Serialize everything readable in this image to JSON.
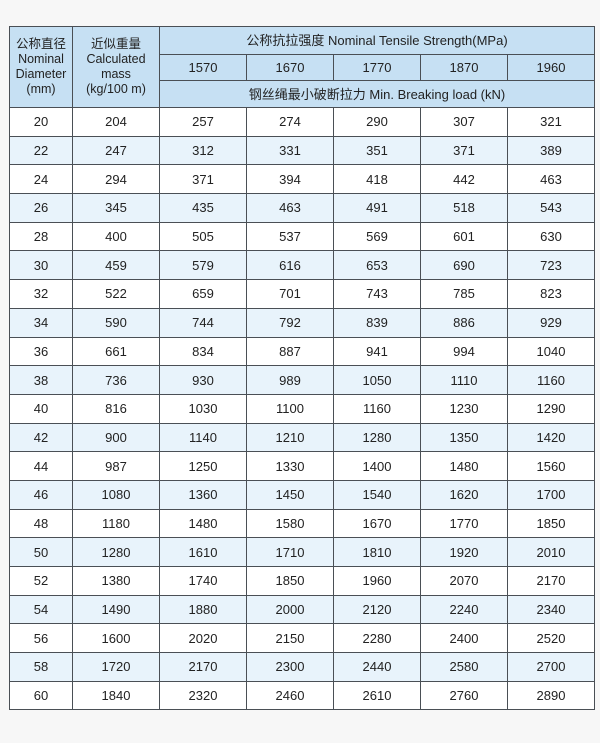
{
  "header": {
    "diameter": [
      "公称直径",
      "Nominal",
      "Diameter",
      "(mm)"
    ],
    "mass": [
      "近似重量",
      "Calculated",
      "mass",
      "(kg/100 m)"
    ],
    "tensile_strength": "公称抗拉强度 Nominal Tensile Strength(MPa)",
    "grades": [
      "1570",
      "1670",
      "1770",
      "1870",
      "1960"
    ],
    "breaking_load": "钢丝绳最小破断拉力 Min. Breaking load (kN)"
  },
  "rows": [
    [
      "20",
      "204",
      "257",
      "274",
      "290",
      "307",
      "321"
    ],
    [
      "22",
      "247",
      "312",
      "331",
      "351",
      "371",
      "389"
    ],
    [
      "24",
      "294",
      "371",
      "394",
      "418",
      "442",
      "463"
    ],
    [
      "26",
      "345",
      "435",
      "463",
      "491",
      "518",
      "543"
    ],
    [
      "28",
      "400",
      "505",
      "537",
      "569",
      "601",
      "630"
    ],
    [
      "30",
      "459",
      "579",
      "616",
      "653",
      "690",
      "723"
    ],
    [
      "32",
      "522",
      "659",
      "701",
      "743",
      "785",
      "823"
    ],
    [
      "34",
      "590",
      "744",
      "792",
      "839",
      "886",
      "929"
    ],
    [
      "36",
      "661",
      "834",
      "887",
      "941",
      "994",
      "1040"
    ],
    [
      "38",
      "736",
      "930",
      "989",
      "1050",
      "1110",
      "1160"
    ],
    [
      "40",
      "816",
      "1030",
      "1100",
      "1160",
      "1230",
      "1290"
    ],
    [
      "42",
      "900",
      "1140",
      "1210",
      "1280",
      "1350",
      "1420"
    ],
    [
      "44",
      "987",
      "1250",
      "1330",
      "1400",
      "1480",
      "1560"
    ],
    [
      "46",
      "1080",
      "1360",
      "1450",
      "1540",
      "1620",
      "1700"
    ],
    [
      "48",
      "1180",
      "1480",
      "1580",
      "1670",
      "1770",
      "1850"
    ],
    [
      "50",
      "1280",
      "1610",
      "1710",
      "1810",
      "1920",
      "2010"
    ],
    [
      "52",
      "1380",
      "1740",
      "1850",
      "1960",
      "2070",
      "2170"
    ],
    [
      "54",
      "1490",
      "1880",
      "2000",
      "2120",
      "2240",
      "2340"
    ],
    [
      "56",
      "1600",
      "2020",
      "2150",
      "2280",
      "2400",
      "2520"
    ],
    [
      "58",
      "1720",
      "2170",
      "2300",
      "2440",
      "2580",
      "2700"
    ],
    [
      "60",
      "1840",
      "2320",
      "2460",
      "2610",
      "2760",
      "2890"
    ]
  ],
  "colors": {
    "header_bg": "#c6e0f3",
    "alt_row_bg": "#e8f3fb",
    "border": "#4a4f55"
  }
}
